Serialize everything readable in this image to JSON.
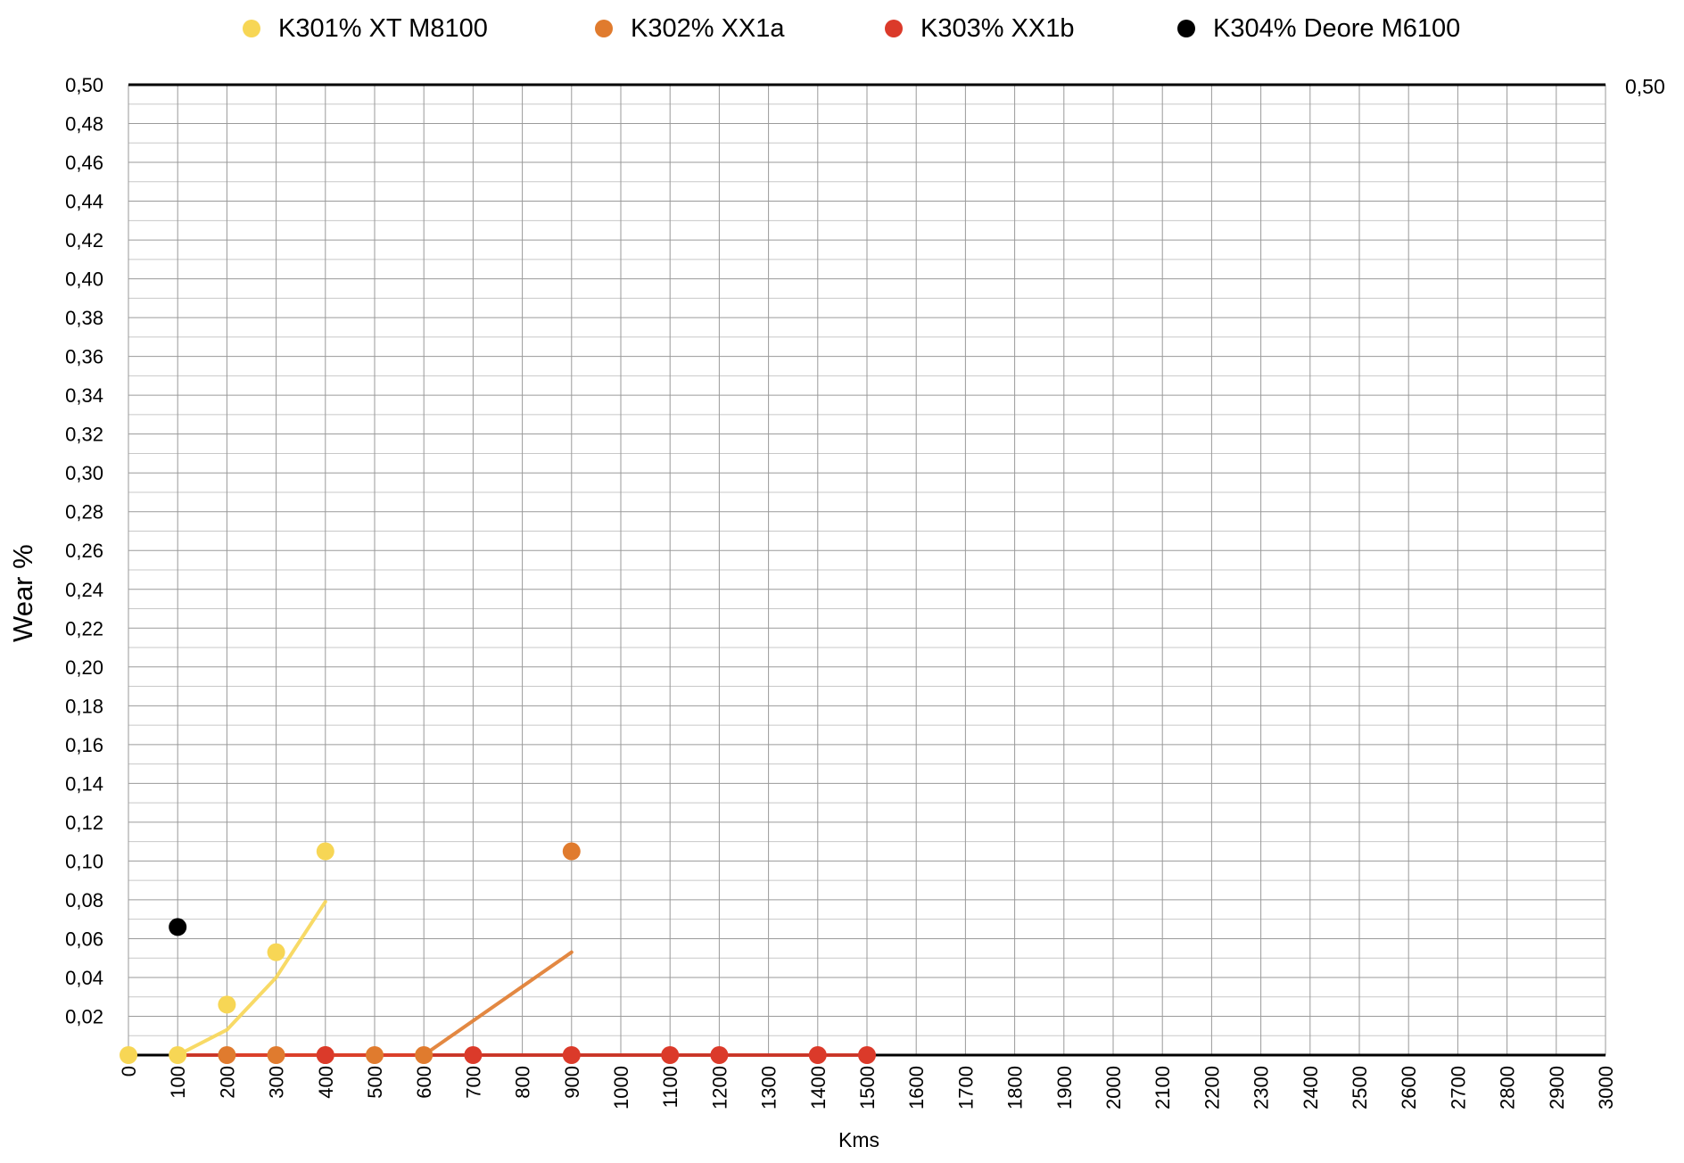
{
  "chart_data": {
    "type": "scatter",
    "xlabel": "Kms",
    "ylabel": "Wear %",
    "xlim": [
      0,
      3000
    ],
    "ylim": [
      0,
      0.5
    ],
    "x_ticks": [
      "0",
      "100",
      "200",
      "300",
      "400",
      "500",
      "600",
      "700",
      "800",
      "900",
      "1000",
      "1100",
      "1200",
      "1300",
      "1400",
      "1500",
      "1600",
      "1700",
      "1800",
      "1900",
      "2000",
      "2100",
      "2200",
      "2300",
      "2400",
      "2500",
      "2600",
      "2700",
      "2800",
      "2900",
      "3000"
    ],
    "y_ticks": [
      "0,02",
      "0,04",
      "0,06",
      "0,08",
      "0,10",
      "0,12",
      "0,14",
      "0,16",
      "0,18",
      "0,20",
      "0,22",
      "0,24",
      "0,26",
      "0,28",
      "0,30",
      "0,32",
      "0,34",
      "0,36",
      "0,38",
      "0,40",
      "0,42",
      "0,44",
      "0,46",
      "0,48",
      "0,50"
    ],
    "right_axis_label": "0,50",
    "grid": true,
    "legend_position": "top",
    "series": [
      {
        "name": "K301% XT M8100",
        "color": "#F7D655",
        "points": [
          [
            0,
            0
          ],
          [
            100,
            0
          ],
          [
            200,
            0.026
          ],
          [
            300,
            0.053
          ],
          [
            400,
            0.105
          ]
        ],
        "trend": [
          [
            100,
            0
          ],
          [
            200,
            0.013
          ],
          [
            300,
            0.04
          ],
          [
            400,
            0.079
          ]
        ]
      },
      {
        "name": "K302% XX1a",
        "color": "#E07B2E",
        "points": [
          [
            200,
            0
          ],
          [
            300,
            0
          ],
          [
            400,
            0
          ],
          [
            500,
            0
          ],
          [
            600,
            0
          ],
          [
            900,
            0.105
          ]
        ],
        "trend": [
          [
            200,
            0
          ],
          [
            600,
            0
          ],
          [
            900,
            0.053
          ]
        ]
      },
      {
        "name": "K303% XX1b",
        "color": "#DB3A2A",
        "points": [
          [
            400,
            0
          ],
          [
            700,
            0
          ],
          [
            900,
            0
          ],
          [
            1100,
            0
          ],
          [
            1200,
            0
          ],
          [
            1400,
            0
          ],
          [
            1500,
            0
          ]
        ],
        "trend": [
          [
            100,
            0
          ],
          [
            1500,
            0
          ]
        ]
      },
      {
        "name": "K304% Deore M6100",
        "color": "#000000",
        "points": [
          [
            100,
            0.066
          ]
        ]
      }
    ]
  }
}
